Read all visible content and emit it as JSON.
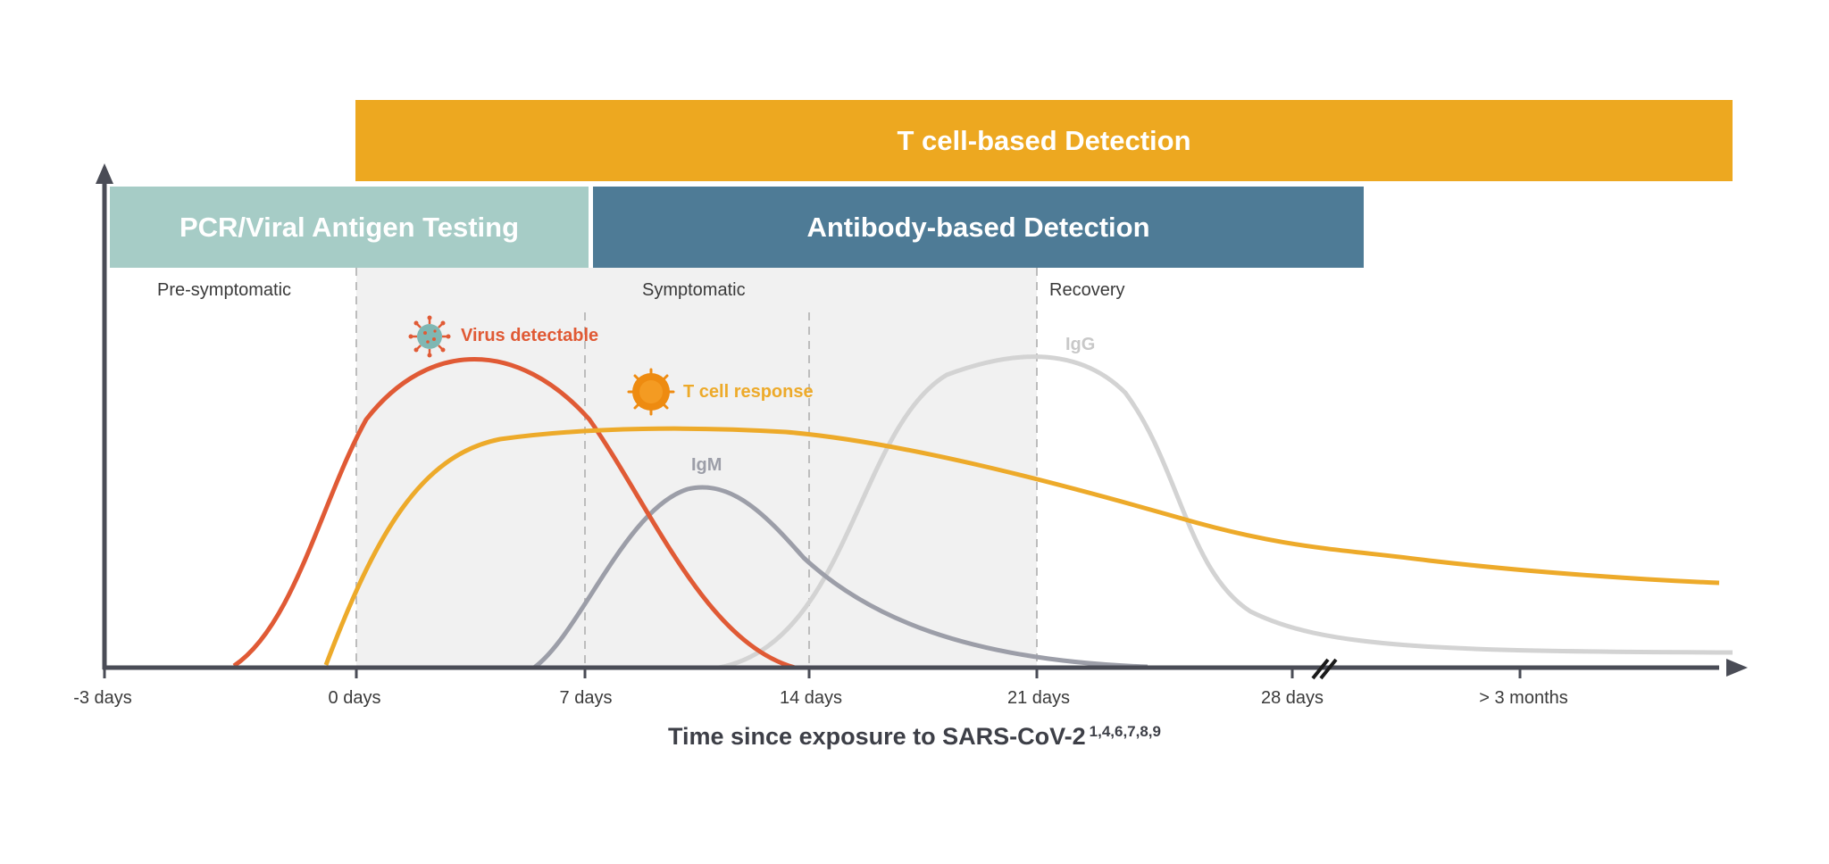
{
  "bands": {
    "tcell": {
      "label": "T cell-based Detection",
      "color": "#eda820"
    },
    "pcr": {
      "label": "PCR/Viral Antigen Testing",
      "color": "#a6ccc6"
    },
    "antibody": {
      "label": "Antibody-based Detection",
      "color": "#4e7b96"
    }
  },
  "phases": {
    "pre": "Pre-symptomatic",
    "symptomatic": "Symptomatic",
    "recovery": "Recovery"
  },
  "curves": {
    "virus": {
      "label": "Virus detectable",
      "color": "#e05a35",
      "icon": "virus-icon"
    },
    "tcell": {
      "label": "T cell response",
      "color": "#edaa2a",
      "icon": "t-cell-icon"
    },
    "igm": {
      "label": "IgM",
      "color": "#9c9ea8"
    },
    "igg": {
      "label": "IgG",
      "color": "#d3d3d3"
    }
  },
  "x_ticks": [
    "-3 days",
    "0 days",
    "7 days",
    "14 days",
    "21 days",
    "28 days",
    "> 3 months"
  ],
  "x_axis": {
    "title": "Time since exposure to SARS-CoV-2",
    "refs": "1,4,6,7,8,9"
  },
  "colors": {
    "axis": "#4a4c56",
    "shade": "#f1f1f1",
    "dashed": "#bdbdbd"
  }
}
